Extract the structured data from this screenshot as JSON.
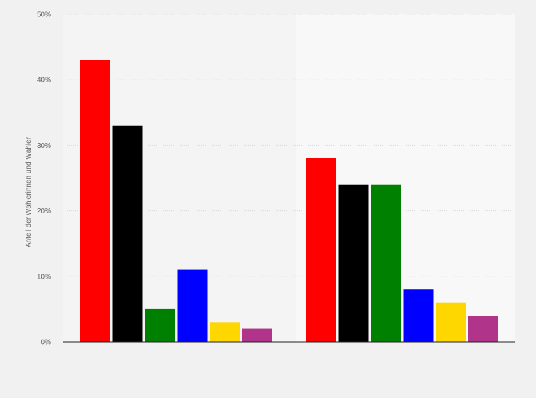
{
  "chart_data": {
    "type": "bar",
    "title": "",
    "xlabel": "",
    "ylabel": "Anteil der Wählerinnen und Wähler",
    "ylim": [
      0,
      50
    ],
    "yticks": [
      "0%",
      "10%",
      "20%",
      "30%",
      "40%",
      "50%"
    ],
    "grid": true,
    "legend": "none",
    "groups": [
      {
        "values": [
          43,
          33,
          5,
          11,
          3,
          2
        ]
      },
      {
        "values": [
          28,
          24,
          24,
          8,
          6,
          4
        ]
      }
    ],
    "colors": [
      "#ff0000",
      "#000000",
      "#008000",
      "#0000ff",
      "#ffd700",
      "#b0358a"
    ],
    "panel_colors": [
      "#f4f4f4",
      "#f8f8f8"
    ]
  }
}
